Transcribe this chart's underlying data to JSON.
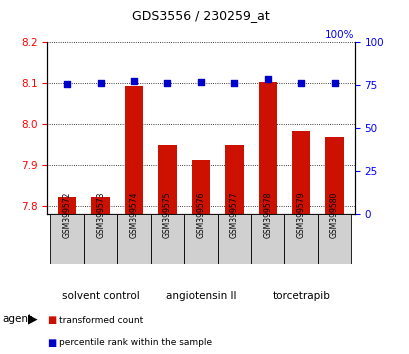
{
  "title": "GDS3556 / 230259_at",
  "samples": [
    "GSM399572",
    "GSM399573",
    "GSM399574",
    "GSM399575",
    "GSM399576",
    "GSM399577",
    "GSM399578",
    "GSM399579",
    "GSM399580"
  ],
  "red_values": [
    7.821,
    7.821,
    8.093,
    7.948,
    7.912,
    7.948,
    8.103,
    7.983,
    7.97
  ],
  "blue_values": [
    76.0,
    76.5,
    77.5,
    76.5,
    77.0,
    76.5,
    79.0,
    76.5,
    76.5
  ],
  "ylim_left": [
    7.78,
    8.2
  ],
  "ylim_right": [
    0,
    100
  ],
  "yticks_left": [
    7.8,
    7.9,
    8.0,
    8.1,
    8.2
  ],
  "yticks_right": [
    0,
    25,
    50,
    75,
    100
  ],
  "groups": [
    {
      "label": "solvent control",
      "indices": [
        0,
        1,
        2
      ],
      "color": "#a8e4a8"
    },
    {
      "label": "angiotensin II",
      "indices": [
        3,
        4,
        5
      ],
      "color": "#c0f0c0"
    },
    {
      "label": "torcetrapib",
      "indices": [
        6,
        7,
        8
      ],
      "color": "#60d860"
    }
  ],
  "bar_color": "#cc1100",
  "dot_color": "#0000cc",
  "legend_red": "transformed count",
  "legend_blue": "percentile rank within the sample",
  "sample_box_color": "#d0d0d0",
  "title_fontsize": 9,
  "tick_fontsize": 7.5,
  "label_fontsize": 7.5
}
